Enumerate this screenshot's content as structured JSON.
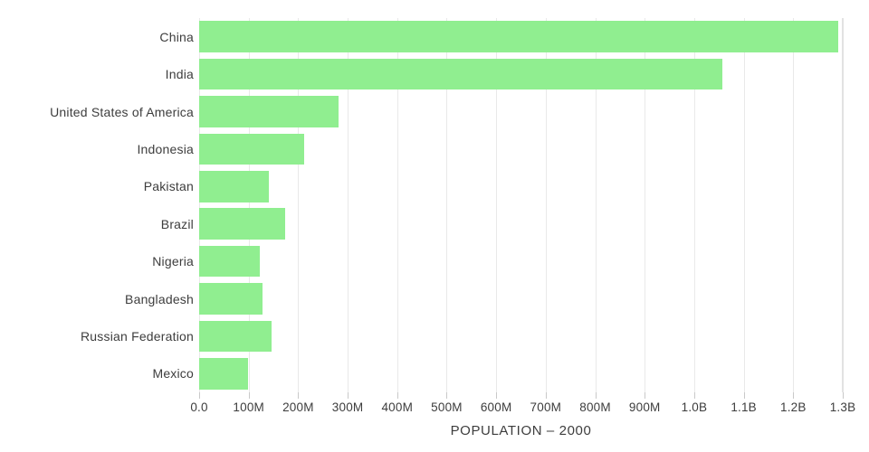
{
  "chart_data": {
    "type": "bar",
    "orientation": "horizontal",
    "title": "",
    "xlabel": "POPULATION – 2000",
    "ylabel": "",
    "categories": [
      "China",
      "India",
      "United States of America",
      "Indonesia",
      "Pakistan",
      "Brazil",
      "Nigeria",
      "Bangladesh",
      "Russian Federation",
      "Mexico"
    ],
    "values_millions": [
      1290,
      1057,
      282,
      212,
      141,
      174,
      123,
      128,
      146,
      99
    ],
    "xlim_millions": [
      0,
      1300
    ],
    "x_ticks": [
      {
        "value_millions": 0,
        "label": "0.0"
      },
      {
        "value_millions": 100,
        "label": "100M"
      },
      {
        "value_millions": 200,
        "label": "200M"
      },
      {
        "value_millions": 300,
        "label": "300M"
      },
      {
        "value_millions": 400,
        "label": "400M"
      },
      {
        "value_millions": 500,
        "label": "500M"
      },
      {
        "value_millions": 600,
        "label": "600M"
      },
      {
        "value_millions": 700,
        "label": "700M"
      },
      {
        "value_millions": 800,
        "label": "800M"
      },
      {
        "value_millions": 900,
        "label": "900M"
      },
      {
        "value_millions": 1000,
        "label": "1.0B"
      },
      {
        "value_millions": 1100,
        "label": "1.1B"
      },
      {
        "value_millions": 1200,
        "label": "1.2B"
      },
      {
        "value_millions": 1300,
        "label": "1.3B"
      }
    ],
    "grid": "vertical-only",
    "legend": "none",
    "colors": {
      "bar_fill": "#90ee90",
      "gridline": "#e9e9e9",
      "end_gridline": "#e2e2e2",
      "tick_mark": "#c9c9c9",
      "text": "#3d3d3d",
      "background": "#ffffff"
    }
  }
}
